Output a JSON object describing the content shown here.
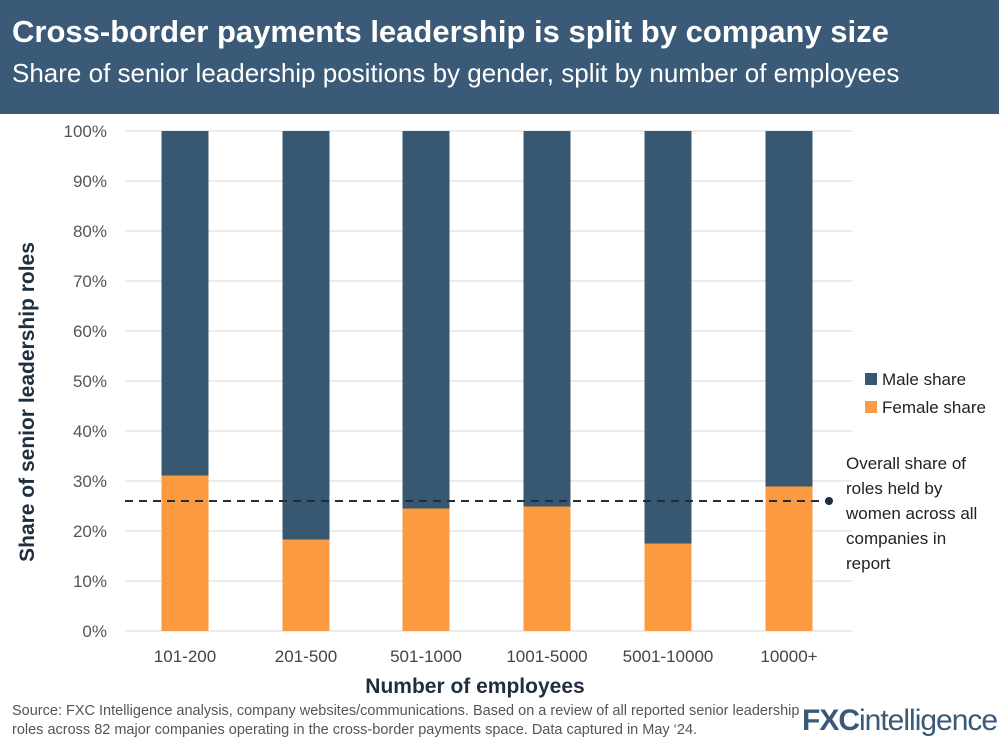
{
  "header": {
    "title": "Cross-border payments leadership is split by company size",
    "subtitle": "Share of senior leadership positions by gender, split by number of employees"
  },
  "chart_data": {
    "type": "bar",
    "stacked": true,
    "categories": [
      "101-200",
      "201-500",
      "501-1000",
      "1001-5000",
      "5001-10000",
      "10000+"
    ],
    "series": [
      {
        "name": "Female share",
        "values": [
          31.1,
          18.3,
          24.5,
          24.9,
          17.5,
          28.9
        ],
        "color": "#fb9a40"
      },
      {
        "name": "Male share",
        "values": [
          68.9,
          81.7,
          75.5,
          75.1,
          82.5,
          71.1
        ],
        "color": "#385872"
      }
    ],
    "xlabel": "Number of employees",
    "ylabel": "Share of senior leadership roles",
    "ylim": [
      0,
      100
    ],
    "yticks": [
      "0%",
      "10%",
      "20%",
      "30%",
      "40%",
      "50%",
      "60%",
      "70%",
      "80%",
      "90%",
      "100%"
    ],
    "grid": true,
    "legend": "right",
    "reference_line": {
      "value": 26,
      "label": [
        "Overall share of",
        "roles held by",
        "women across all",
        "companies in",
        "report"
      ]
    }
  },
  "footer": {
    "source": "Source: FXC Intelligence analysis, company websites/communications. Based on a review of all reported senior leadership roles across 82 major companies operating in the cross-border payments space. Data captured in May ‘24.",
    "logo": "FXCintelligence"
  }
}
